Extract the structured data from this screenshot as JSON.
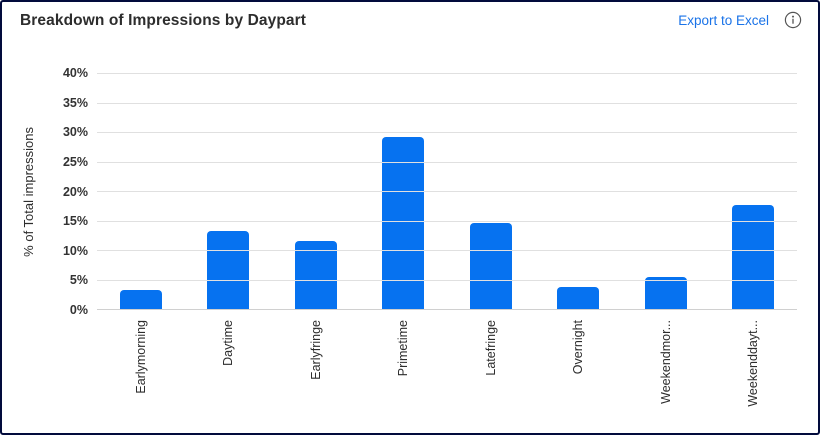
{
  "header": {
    "title": "Breakdown of Impressions by Daypart",
    "export_label": "Export to Excel",
    "info_icon": "info-circle-icon"
  },
  "colors": {
    "bar": "#0672f0",
    "link": "#1a73e8",
    "card_border": "#020b3c",
    "gridline": "#e0e0e0",
    "text": "#2d2d2d"
  },
  "chart_data": {
    "type": "bar",
    "title": "Breakdown of Impressions by Daypart",
    "categories": [
      "Earlymorning",
      "Daytime",
      "Earlyfringe",
      "Primetime",
      "Latefringe",
      "Overnight",
      "Weekendmor...",
      "Weekenddayt..."
    ],
    "values": [
      3.2,
      13.3,
      11.5,
      29.2,
      14.6,
      3.8,
      5.4,
      17.6
    ],
    "xlabel": "",
    "ylabel": "% of Total impressions",
    "ylim": [
      0,
      40
    ],
    "ytick_labels": [
      "40%",
      "35%",
      "30%",
      "25%",
      "20%",
      "15%",
      "10%",
      "5%",
      "0%"
    ],
    "grid": true,
    "legend": false,
    "bar_color": "#0672f0"
  }
}
